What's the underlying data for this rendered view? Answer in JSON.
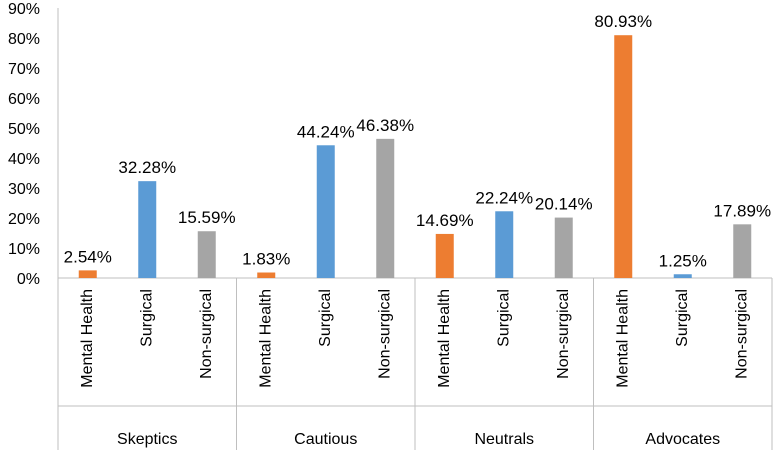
{
  "chart_data": {
    "type": "bar",
    "ylim": [
      0,
      90
    ],
    "y_ticks": [
      "0%",
      "10%",
      "20%",
      "30%",
      "40%",
      "50%",
      "60%",
      "70%",
      "80%",
      "90%"
    ],
    "grid": false,
    "legend": "none",
    "groups": [
      {
        "name": "Skeptics",
        "bars": [
          {
            "category": "Mental Health",
            "value": 2.54,
            "label": "2.54%"
          },
          {
            "category": "Surgical",
            "value": 32.28,
            "label": "32.28%"
          },
          {
            "category": "Non-surgical",
            "value": 15.59,
            "label": "15.59%"
          }
        ]
      },
      {
        "name": "Cautious",
        "bars": [
          {
            "category": "Mental Health",
            "value": 1.83,
            "label": "1.83%"
          },
          {
            "category": "Surgical",
            "value": 44.24,
            "label": "44.24%"
          },
          {
            "category": "Non-surgical",
            "value": 46.38,
            "label": "46.38%"
          }
        ]
      },
      {
        "name": "Neutrals",
        "bars": [
          {
            "category": "Mental Health",
            "value": 14.69,
            "label": "14.69%"
          },
          {
            "category": "Surgical",
            "value": 22.24,
            "label": "22.24%"
          },
          {
            "category": "Non-surgical",
            "value": 20.14,
            "label": "20.14%"
          }
        ]
      },
      {
        "name": "Advocates",
        "bars": [
          {
            "category": "Mental Health",
            "value": 80.93,
            "label": "80.93%"
          },
          {
            "category": "Surgical",
            "value": 1.25,
            "label": "1.25%"
          },
          {
            "category": "Non-surgical",
            "value": 17.89,
            "label": "17.89%"
          }
        ]
      }
    ],
    "colors": {
      "Mental Health": "#ED7D31",
      "Surgical": "#5B9BD5",
      "Non-surgical": "#A5A5A5"
    },
    "axis_color": "#BFBFBF"
  }
}
